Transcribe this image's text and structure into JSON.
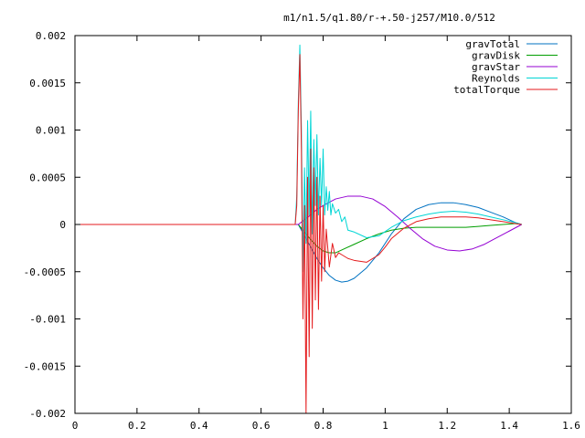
{
  "chart_data": {
    "type": "line",
    "title": "m1/n1.5/q1.80/r-+.50-j257/M10.0/512",
    "xlabel": "",
    "ylabel": "",
    "xlim": [
      0,
      1.6
    ],
    "ylim": [
      -0.002,
      0.002
    ],
    "grid": false,
    "legend_position": "top-right",
    "x_ticks": [
      "0",
      "0.2",
      "0.4",
      "0.6",
      "0.8",
      "1",
      "1.2",
      "1.4",
      "1.6"
    ],
    "y_ticks": [
      "0.002",
      "0.0015",
      "0.001",
      "0.0005",
      "0",
      "-0.0005",
      "-0.001",
      "-0.0015",
      "-0.002"
    ],
    "series": [
      {
        "name": "gravTotal",
        "color": "#0072c2",
        "x": [
          0,
          0.72,
          0.74,
          0.76,
          0.78,
          0.8,
          0.82,
          0.84,
          0.86,
          0.88,
          0.9,
          0.94,
          0.98,
          1.02,
          1.06,
          1.1,
          1.14,
          1.18,
          1.22,
          1.26,
          1.3,
          1.34,
          1.38,
          1.42,
          1.44
        ],
        "y": [
          0,
          0,
          -0.00012,
          -0.00024,
          -0.00036,
          -0.00046,
          -0.00054,
          -0.00059,
          -0.00061,
          -0.0006,
          -0.00057,
          -0.00046,
          -0.0003,
          -0.0001,
          6e-05,
          0.00016,
          0.00021,
          0.00023,
          0.00023,
          0.00021,
          0.00018,
          0.00013,
          8e-05,
          2e-05,
          0
        ]
      },
      {
        "name": "gravDisk",
        "color": "#009e00",
        "x": [
          0,
          0.72,
          0.74,
          0.76,
          0.78,
          0.8,
          0.82,
          0.84,
          0.86,
          0.9,
          0.94,
          0.98,
          1.02,
          1.06,
          1.1,
          1.14,
          1.18,
          1.22,
          1.26,
          1.3,
          1.34,
          1.38,
          1.42,
          1.44
        ],
        "y": [
          0,
          0,
          -8e-05,
          -0.00016,
          -0.00023,
          -0.00028,
          -0.0003,
          -0.0003,
          -0.00027,
          -0.00021,
          -0.00015,
          -0.0001,
          -6e-05,
          -4e-05,
          -3e-05,
          -3e-05,
          -3e-05,
          -3e-05,
          -3e-05,
          -2e-05,
          -1e-05,
          0,
          1e-05,
          0
        ]
      },
      {
        "name": "gravStar",
        "color": "#9400d3",
        "x": [
          0,
          0.72,
          0.74,
          0.76,
          0.78,
          0.8,
          0.84,
          0.88,
          0.92,
          0.96,
          1.0,
          1.04,
          1.08,
          1.12,
          1.16,
          1.2,
          1.24,
          1.28,
          1.32,
          1.36,
          1.4,
          1.44
        ],
        "y": [
          0,
          0,
          5e-05,
          0.0001,
          0.00016,
          0.0002,
          0.00027,
          0.0003,
          0.0003,
          0.00027,
          0.00019,
          8e-05,
          -4e-05,
          -0.00015,
          -0.00023,
          -0.00027,
          -0.00028,
          -0.00026,
          -0.00021,
          -0.00014,
          -7e-05,
          0
        ]
      },
      {
        "name": "Reynolds",
        "color": "#00d5d5",
        "x": [
          0,
          0.71,
          0.715,
          0.72,
          0.725,
          0.73,
          0.735,
          0.74,
          0.745,
          0.75,
          0.755,
          0.76,
          0.765,
          0.77,
          0.775,
          0.78,
          0.785,
          0.79,
          0.795,
          0.8,
          0.805,
          0.81,
          0.815,
          0.82,
          0.825,
          0.83,
          0.84,
          0.85,
          0.86,
          0.87,
          0.88,
          0.9,
          0.94,
          0.98,
          1.02,
          1.06,
          1.1,
          1.14,
          1.18,
          1.22,
          1.26,
          1.3,
          1.34,
          1.38,
          1.42,
          1.44
        ],
        "y": [
          0,
          0,
          0.0003,
          0.0013,
          0.0019,
          0.001,
          -0.0005,
          0.0006,
          -0.0002,
          0.0011,
          0.0001,
          0.0012,
          -0.0001,
          0.0009,
          0.0002,
          0.00095,
          0.0001,
          0.0007,
          0.0002,
          0.0008,
          0.0001,
          0.0004,
          0.00015,
          0.00035,
          0.0001,
          0.00022,
          0.00012,
          0.00016,
          3e-05,
          8e-05,
          -6e-05,
          -8e-05,
          -0.00014,
          -0.00012,
          -3e-05,
          4e-05,
          8e-05,
          0.00011,
          0.00013,
          0.00014,
          0.00013,
          0.00011,
          8e-05,
          5e-05,
          2e-05,
          0
        ]
      },
      {
        "name": "totalTorque",
        "color": "#e41a1c",
        "x": [
          0,
          0.71,
          0.715,
          0.72,
          0.725,
          0.73,
          0.735,
          0.74,
          0.745,
          0.75,
          0.755,
          0.76,
          0.765,
          0.77,
          0.775,
          0.78,
          0.785,
          0.79,
          0.795,
          0.8,
          0.805,
          0.81,
          0.82,
          0.83,
          0.84,
          0.85,
          0.86,
          0.88,
          0.9,
          0.94,
          0.98,
          1.0,
          1.02,
          1.06,
          1.1,
          1.14,
          1.18,
          1.22,
          1.26,
          1.3,
          1.34,
          1.38,
          1.42,
          1.44
        ],
        "y": [
          0,
          0,
          0.0002,
          0.0012,
          0.0018,
          0.0008,
          -0.001,
          0.0002,
          -0.002,
          0.0005,
          -0.0014,
          0.0008,
          -0.0011,
          0.0006,
          -0.0008,
          0.0005,
          -0.0009,
          0.0003,
          -0.0006,
          0.0002,
          -0.0005,
          -5e-05,
          -0.00045,
          -0.0002,
          -0.00035,
          -0.0003,
          -0.00032,
          -0.00036,
          -0.00038,
          -0.0004,
          -0.00032,
          -0.00024,
          -0.00015,
          -4e-05,
          3e-05,
          6e-05,
          8e-05,
          8e-05,
          8e-05,
          7e-05,
          5e-05,
          3e-05,
          1e-05,
          0
        ]
      }
    ]
  }
}
